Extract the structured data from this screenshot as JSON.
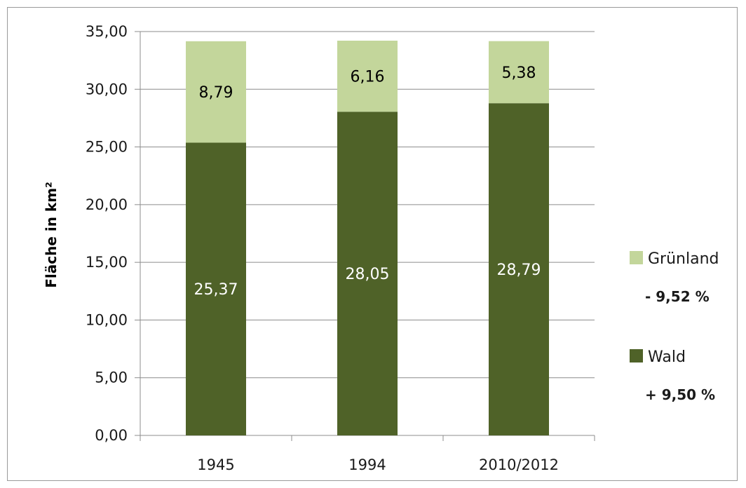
{
  "chart_data": {
    "type": "bar",
    "stacked": true,
    "title": "",
    "xlabel": "",
    "ylabel": "Fläche in km²",
    "ylim": [
      0,
      35
    ],
    "ytick_step": 5,
    "ytick_labels": [
      "0,00",
      "5,00",
      "10,00",
      "15,00",
      "20,00",
      "25,00",
      "30,00",
      "35,00"
    ],
    "grid": true,
    "legend_position": "right",
    "categories": [
      "1945",
      "1994",
      "2010/2012"
    ],
    "series": [
      {
        "name": "Wald",
        "color": "#4f6228",
        "values": [
          25.37,
          28.05,
          28.79
        ],
        "labels": [
          "25,37",
          "28,05",
          "28,79"
        ],
        "label_color": "#ffffff",
        "change": "+ 9,50 %"
      },
      {
        "name": "Grünland",
        "color": "#c3d69b",
        "values": [
          8.79,
          6.16,
          5.38
        ],
        "labels": [
          "8,79",
          "6,16",
          "5,38"
        ],
        "label_color": "#000000",
        "change": "- 9,52 %"
      }
    ]
  }
}
